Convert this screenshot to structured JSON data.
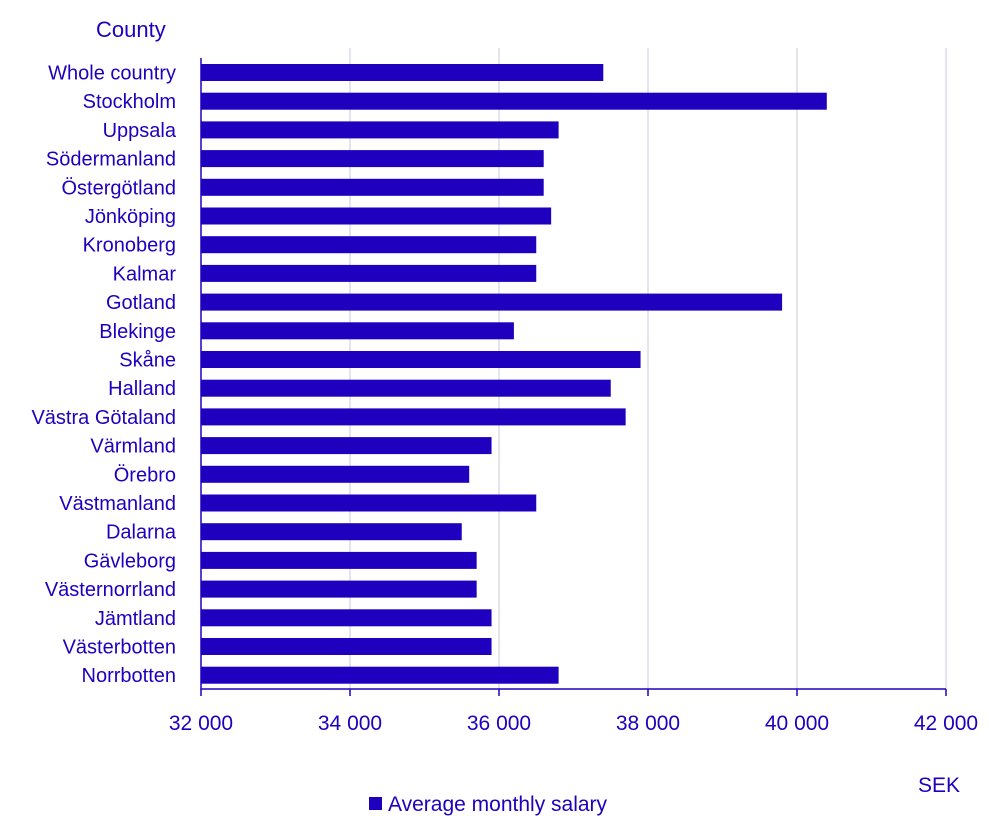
{
  "chart_data": {
    "type": "bar",
    "orientation": "horizontal",
    "y_axis_title": "County",
    "x_axis_unit": "SEK",
    "categories": [
      "Whole country",
      "Stockholm",
      "Uppsala",
      "Södermanland",
      "Östergötland",
      "Jönköping",
      "Kronoberg",
      "Kalmar",
      "Gotland",
      "Blekinge",
      "Skåne",
      "Halland",
      "Västra Götaland",
      "Värmland",
      "Örebro",
      "Västmanland",
      "Dalarna",
      "Gävleborg",
      "Västernorrland",
      "Jämtland",
      "Västerbotten",
      "Norrbotten"
    ],
    "series": [
      {
        "name": "Average monthly salary",
        "values": [
          37400,
          40400,
          36800,
          36600,
          36600,
          36700,
          36500,
          36500,
          39800,
          36200,
          37900,
          37500,
          37700,
          35900,
          35600,
          36500,
          35500,
          35700,
          35700,
          35900,
          35900,
          36800
        ]
      }
    ],
    "xlim": [
      32000,
      42000
    ],
    "x_ticks": [
      32000,
      34000,
      36000,
      38000,
      40000,
      42000
    ],
    "x_tick_labels": [
      "32 000",
      "34 000",
      "36 000",
      "38 000",
      "40 000",
      "42 000"
    ],
    "grid": "vertical",
    "legend": "bottom",
    "colors": {
      "bar": "#1e00be",
      "text": "#1e00be",
      "grid": "#d2d2e6",
      "axis": "#1e00be"
    }
  }
}
